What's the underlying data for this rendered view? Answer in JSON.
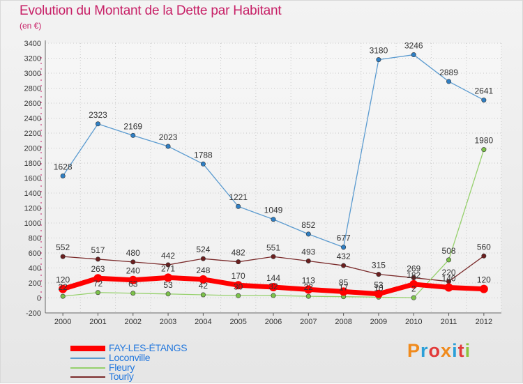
{
  "header": {
    "title": "Evolution du Montant de la Dette par Habitant",
    "subtitle": "(en €)"
  },
  "brand": {
    "text": "Proxiti",
    "colors": [
      "#f08a1c",
      "#2b9fd8",
      "#e23a3a",
      "#f08a1c",
      "#2b9fd8",
      "#e23a3a",
      "#8fc53d"
    ]
  },
  "chart_data": {
    "type": "line",
    "title": "Evolution du Montant de la Dette par Habitant",
    "subtitle": "(en €)",
    "xlabel": "",
    "ylabel": "",
    "x": [
      "2000",
      "2001",
      "2002",
      "2003",
      "2004",
      "2005",
      "2006",
      "2007",
      "2008",
      "2009",
      "2010",
      "2011",
      "2012"
    ],
    "ylim": [
      -200,
      3400
    ],
    "yticks": [
      -200,
      0,
      200,
      400,
      600,
      800,
      1000,
      1200,
      1400,
      1600,
      1800,
      2000,
      2200,
      2400,
      2600,
      2800,
      3000,
      3200,
      3400
    ],
    "grid": true,
    "legend_position": "bottom-left",
    "series": [
      {
        "name": "Loconville",
        "color": "#5b9bd0",
        "marker": "#2f7fc4",
        "values": [
          1628,
          2323,
          2169,
          2023,
          1788,
          1221,
          1049,
          852,
          677,
          3180,
          3246,
          2889,
          2641
        ]
      },
      {
        "name": "Tourly",
        "color": "#7a2a2a",
        "marker": "#6b1f1f",
        "values": [
          552,
          517,
          480,
          442,
          524,
          482,
          551,
          493,
          432,
          315,
          269,
          220,
          560
        ]
      },
      {
        "name": "Fleury",
        "color": "#95d06b",
        "marker": "#7cc24a",
        "values": [
          22,
          72,
          63,
          53,
          42,
          30,
          32,
          22,
          17,
          10,
          2,
          508,
          1980
        ]
      },
      {
        "name": "FAY-LES-ÉTANGS",
        "color": "#ff0000",
        "marker": "#ff0000",
        "values": [
          120,
          263,
          240,
          271,
          248,
          170,
          144,
          113,
          85,
          53,
          182,
          140,
          120
        ]
      }
    ],
    "labels": {
      "Loconville": [
        "1628",
        "2323",
        "2169",
        "2023",
        "1788",
        "1221",
        "1049",
        "852",
        "677",
        "3180",
        "3246",
        "2889",
        "2641"
      ],
      "Tourly": [
        "552",
        "517",
        "480",
        "442",
        "524",
        "482",
        "551",
        "493",
        "432",
        "315",
        "269",
        "220",
        "560"
      ],
      "Fleury": [
        "22",
        "72",
        "63",
        "53",
        "42",
        "30",
        "32",
        "22",
        "17",
        "10",
        "2",
        "508",
        "1980"
      ],
      "FAY-LES-ÉTANGS": [
        "120",
        "263",
        "240",
        "271",
        "248",
        "170",
        "144",
        "113",
        "85",
        "53",
        "182",
        "140",
        "120"
      ]
    }
  },
  "legend": [
    {
      "name": "FAY-LES-ÉTANGS",
      "color": "#ff0000"
    },
    {
      "name": "Loconville",
      "color": "#5b9bd0"
    },
    {
      "name": "Fleury",
      "color": "#95d06b"
    },
    {
      "name": "Tourly",
      "color": "#7a2a2a"
    }
  ]
}
